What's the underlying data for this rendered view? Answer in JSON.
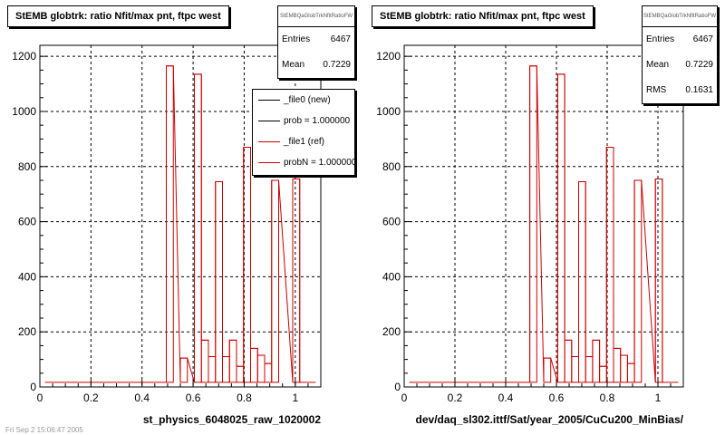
{
  "colors": {
    "ref": "#cc0000",
    "new": "#000000",
    "frame": "#000000",
    "grid": "#000000"
  },
  "panels": [
    {
      "title": "StEMB globtrk: ratio Nfit/max pnt, ftpc west",
      "xlabel": "st_physics_6048025_raw_1020002",
      "stats": {
        "name": "StEMBQaGlobTrkNfitRatioFW",
        "rows": [
          {
            "label": "Entries",
            "value": "6467"
          },
          {
            "label": "Mean",
            "value": "0.7229"
          }
        ]
      },
      "legend": [
        {
          "text": "_file0 (new)",
          "color": "#000000"
        },
        {
          "text": "prob = 1.000000",
          "color": "#000000"
        },
        {
          "text": "_file1 (ref)",
          "color": "#cc0000"
        },
        {
          "text": "probN = 1.000000",
          "color": "#cc0000"
        }
      ]
    },
    {
      "title": "StEMB globtrk: ratio Nfit/max pnt, ftpc west",
      "xlabel": "dev/daq_sl302.ittf/Sat/year_2005/CuCu200_MinBias/",
      "stats": {
        "name": "StEMBQaGlobTrkNfitRatioFW",
        "rows": [
          {
            "label": "Entries",
            "value": "6467"
          },
          {
            "label": "Mean",
            "value": "0.7229"
          },
          {
            "label": "RMS",
            "value": "0.1631"
          }
        ]
      }
    }
  ],
  "footer": "Fri Sep 2 15:06:47 2005",
  "chart_data": [
    {
      "type": "bar",
      "title": "StEMB globtrk: ratio Nfit/max pnt, ftpc west",
      "xlabel": "st_physics_6048025_raw_1020002",
      "ylabel": "",
      "xlim": [
        0,
        1.1
      ],
      "ylim": [
        0,
        1240
      ],
      "xticks": [
        "0",
        "0.2",
        "0.4",
        "0.6",
        "0.8",
        "1"
      ],
      "yticks": [
        "0",
        "200",
        "400",
        "600",
        "800",
        "1000",
        "1200"
      ],
      "grid": true,
      "bin_width": 0.0275,
      "bin_left_edges": [
        0.495,
        0.55,
        0.605,
        0.6325,
        0.66,
        0.6875,
        0.715,
        0.7425,
        0.77,
        0.7975,
        0.825,
        0.8525,
        0.88,
        0.9075,
        0.99
      ],
      "values": [
        1165,
        105,
        1135,
        170,
        110,
        745,
        110,
        170,
        75,
        870,
        140,
        115,
        85,
        750,
        755
      ],
      "series": [
        {
          "name": "_file1 (ref)",
          "color": "#cc0000"
        }
      ]
    },
    {
      "type": "bar",
      "title": "StEMB globtrk: ratio Nfit/max pnt, ftpc west",
      "xlabel": "dev/daq_sl302.ittf/Sat/year_2005/CuCu200_MinBias/",
      "ylabel": "",
      "xlim": [
        0,
        1.1
      ],
      "ylim": [
        0,
        1240
      ],
      "xticks": [
        "0",
        "0.2",
        "0.4",
        "0.6",
        "0.8",
        "1"
      ],
      "yticks": [
        "0",
        "200",
        "400",
        "600",
        "800",
        "1000",
        "1200"
      ],
      "grid": true,
      "bin_width": 0.0275,
      "bin_left_edges": [
        0.495,
        0.55,
        0.605,
        0.6325,
        0.66,
        0.6875,
        0.715,
        0.7425,
        0.77,
        0.7975,
        0.825,
        0.8525,
        0.88,
        0.9075,
        0.99
      ],
      "values": [
        1165,
        105,
        1135,
        170,
        110,
        745,
        110,
        170,
        75,
        870,
        140,
        115,
        85,
        750,
        755
      ],
      "series": [
        {
          "color": "#cc0000"
        }
      ]
    }
  ]
}
